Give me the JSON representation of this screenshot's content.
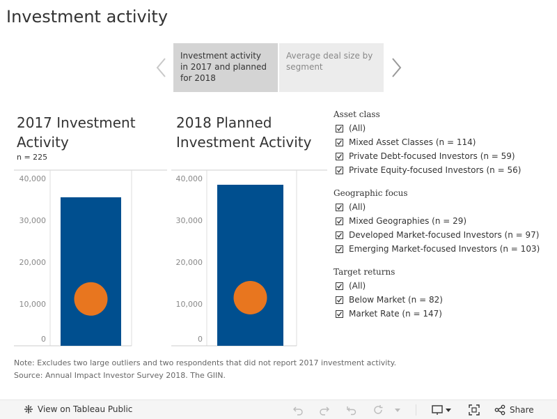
{
  "page": {
    "title": "Investment activity"
  },
  "story": {
    "tabs": [
      {
        "label": "Investment activity in 2017 and planned for 2018",
        "active": true
      },
      {
        "label": "Average deal size by segment",
        "active": false
      }
    ]
  },
  "charts": {
    "left": {
      "title": "2017 Investment Activity",
      "n_label": "n = 225"
    },
    "right": {
      "title": "2018 Planned Investment Activity"
    }
  },
  "chart_data": [
    {
      "type": "bar",
      "title": "2017 Investment Activity",
      "subtitle": "n = 225",
      "ylim": [
        0,
        40000
      ],
      "yticks": [
        "40,000",
        "30,000",
        "20,000",
        "10,000",
        "0"
      ],
      "bar_value": 35500,
      "marker_value": 11200,
      "bar_color": "#004f8f",
      "marker_color": "#e8761f"
    },
    {
      "type": "bar",
      "title": "2018 Planned Investment Activity",
      "ylim": [
        0,
        40000
      ],
      "yticks": [
        "40,000",
        "30,000",
        "20,000",
        "10,000",
        "0"
      ],
      "bar_value": 38500,
      "marker_value": 11500,
      "bar_color": "#004f8f",
      "marker_color": "#e8761f"
    }
  ],
  "filters": [
    {
      "heading": "Asset class",
      "items": [
        "(All)",
        "Mixed Asset Classes (n = 114)",
        "Private Debt-focused Investors (n = 59)",
        "Private Equity-focused Investors (n = 56)"
      ]
    },
    {
      "heading": "Geographic focus",
      "items": [
        "(All)",
        "Mixed Geographies (n = 29)",
        "Developed Market-focused Investors (n = 97)",
        "Emerging Market-focused Investors (n = 103)"
      ]
    },
    {
      "heading": "Target returns",
      "items": [
        "(All)",
        "Below Market (n = 82)",
        "Market Rate (n = 147)"
      ]
    }
  ],
  "notes": {
    "line1": "Note: Excludes two large outliers and two respondents that did not report 2017 investment activity.",
    "line2": "Source: Annual Impact Investor Survey 2018. The GIIN."
  },
  "footer": {
    "view_label": "View on Tableau Public",
    "share_label": "Share"
  },
  "icons": {
    "prev": "chevron-left-icon",
    "next": "chevron-right-icon",
    "tableau": "tableau-logo-icon",
    "undo": "undo-icon",
    "redo": "redo-icon",
    "revert": "revert-icon",
    "refresh": "refresh-icon",
    "download": "download-icon",
    "fullscreen": "fullscreen-icon",
    "share": "share-icon"
  }
}
